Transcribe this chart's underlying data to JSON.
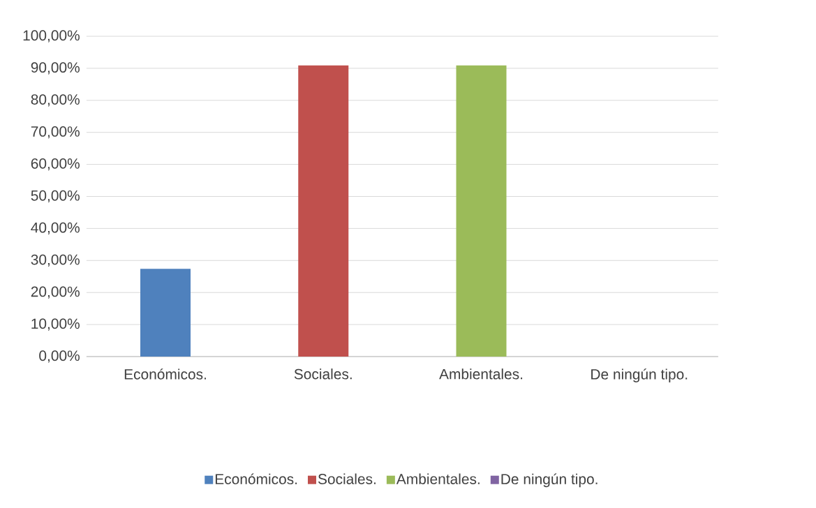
{
  "chart_data": {
    "type": "bar",
    "categories": [
      "Económicos.",
      "Sociales.",
      "Ambientales.",
      "De ningún tipo."
    ],
    "series": [
      {
        "name": "Económicos.",
        "color": "#4f81bd",
        "values": [
          27.4,
          null,
          null,
          null
        ]
      },
      {
        "name": "Sociales.",
        "color": "#c0504d",
        "values": [
          null,
          90.9,
          null,
          null
        ]
      },
      {
        "name": "Ambientales.",
        "color": "#9bbb59",
        "values": [
          null,
          null,
          90.9,
          null
        ]
      },
      {
        "name": "De ningún tipo.",
        "color": "#8064a2",
        "values": [
          null,
          null,
          null,
          0
        ]
      }
    ],
    "ylim": [
      0,
      100
    ],
    "yticks": [
      {
        "value": 0,
        "label": "0,00%"
      },
      {
        "value": 10,
        "label": "10,00%"
      },
      {
        "value": 20,
        "label": "20,00%"
      },
      {
        "value": 30,
        "label": "30,00%"
      },
      {
        "value": 40,
        "label": "40,00%"
      },
      {
        "value": 50,
        "label": "50,00%"
      },
      {
        "value": 60,
        "label": "60,00%"
      },
      {
        "value": 70,
        "label": "70,00%"
      },
      {
        "value": 80,
        "label": "80,00%"
      },
      {
        "value": 90,
        "label": "90,00%"
      },
      {
        "value": 100,
        "label": "100,00%"
      }
    ],
    "grid": "y",
    "legend": "bottom"
  }
}
